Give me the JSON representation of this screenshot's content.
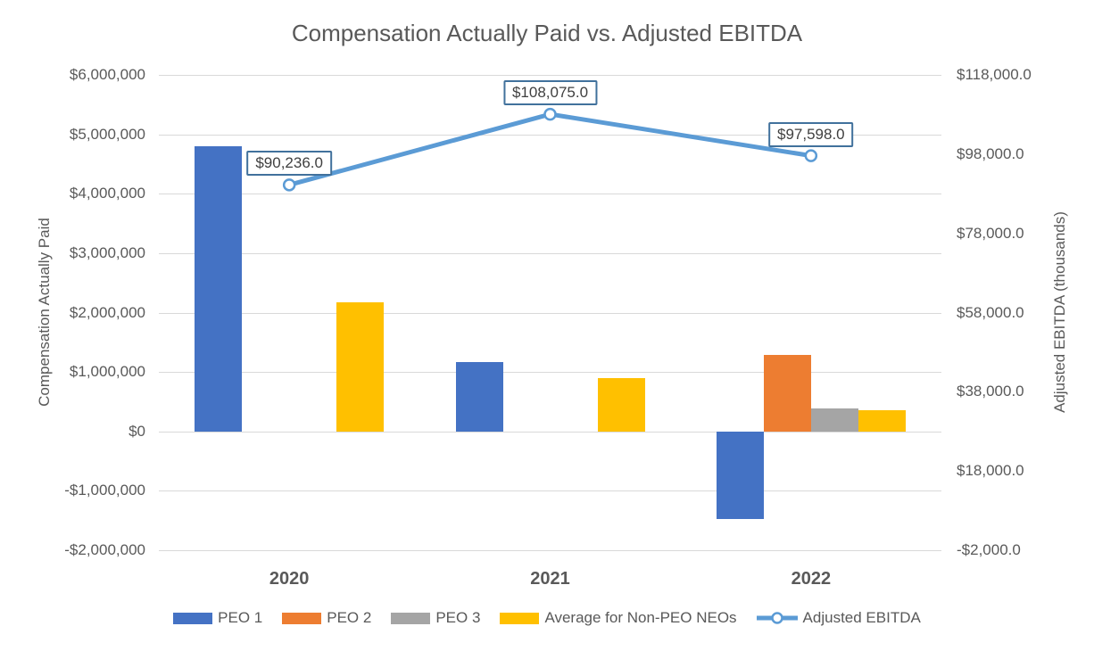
{
  "chart_data": {
    "type": "bar",
    "combo": "clustered bars with line on secondary axis",
    "title": "Compensation Actually Paid vs. Adjusted EBITDA",
    "categories": [
      "2020",
      "2021",
      "2022"
    ],
    "bar_series": [
      {
        "name": "PEO 1",
        "color": "#4472C4",
        "values": [
          4800000,
          1170000,
          -1480000
        ]
      },
      {
        "name": "PEO 2",
        "color": "#ED7D31",
        "values": [
          null,
          null,
          1280000
        ]
      },
      {
        "name": "PEO 3",
        "color": "#A5A5A5",
        "values": [
          null,
          null,
          380000
        ]
      },
      {
        "name": "Average for Non-PEO NEOs",
        "color": "#FFC000",
        "values": [
          2180000,
          900000,
          350000
        ]
      }
    ],
    "line_series": {
      "name": "Adjusted EBITDA",
      "color": "#5B9BD5",
      "axis": "right",
      "values": [
        90236.0,
        108075.0,
        97598.0
      ],
      "labels": [
        "$90,236.0",
        "$108,075.0",
        "$97,598.0"
      ]
    },
    "left_axis": {
      "title": "Compensation Actually Paid",
      "min": -2000000,
      "max": 6000000,
      "step": 1000000,
      "ticks": [
        "$6,000,000",
        "$5,000,000",
        "$4,000,000",
        "$3,000,000",
        "$2,000,000",
        "$1,000,000",
        "$0",
        "-$1,000,000",
        "-$2,000,000"
      ]
    },
    "right_axis": {
      "title": "Adjusted EBITDA (thousands)",
      "min": -2000,
      "max": 118000,
      "step": 20000,
      "ticks": [
        "$118,000.0",
        "$98,000.0",
        "$78,000.0",
        "$58,000.0",
        "$38,000.0",
        "$18,000.0",
        "-$2,000.0"
      ]
    },
    "grid": true,
    "legend_position": "bottom"
  },
  "colors": {
    "grid": "#D9D9D9",
    "text": "#595959",
    "label_text": "#3F3F3F",
    "callout_border": "#41719C"
  }
}
